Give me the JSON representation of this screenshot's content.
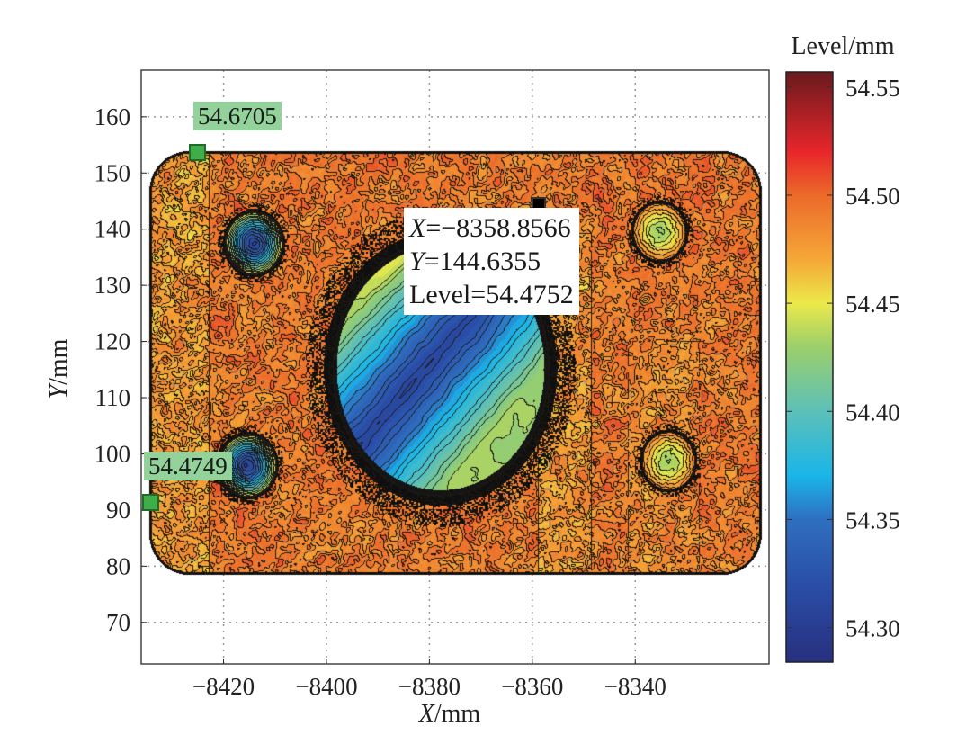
{
  "chart_data": {
    "type": "heatmap",
    "subtype": "filled-contour",
    "xlabel_var": "X",
    "xlabel_unit": "/mm",
    "ylabel_var": "Y",
    "ylabel_unit": "/mm",
    "xlim": [
      -8436,
      -8314
    ],
    "ylim": [
      62.6,
      168.3
    ],
    "xticks": [
      -8420,
      -8400,
      -8380,
      -8360,
      -8340
    ],
    "xtick_labels": [
      "−8420",
      "−8400",
      "−8380",
      "−8360",
      "−8340"
    ],
    "yticks": [
      160,
      150,
      140,
      130,
      120,
      110,
      100,
      90,
      80,
      70
    ],
    "ytick_labels": [
      "160",
      "150",
      "140",
      "130",
      "120",
      "110",
      "100",
      "90",
      "80",
      "70"
    ],
    "grid": true,
    "colorbar": {
      "title": "Level/mm",
      "range": [
        54.284,
        54.557
      ],
      "ticks": [
        54.55,
        54.5,
        54.45,
        54.4,
        54.35,
        54.3
      ],
      "tick_labels": [
        "54.55",
        "54.50",
        "54.45",
        "54.40",
        "54.35",
        "54.30"
      ],
      "colors": [
        {
          "v": 54.284,
          "c": "#27307e"
        },
        {
          "v": 54.32,
          "c": "#2a4ea8"
        },
        {
          "v": 54.35,
          "c": "#2f6fc0"
        },
        {
          "v": 54.37,
          "c": "#19b5e8"
        },
        {
          "v": 54.4,
          "c": "#5cc0b8"
        },
        {
          "v": 54.43,
          "c": "#9ccf6a"
        },
        {
          "v": 54.45,
          "c": "#ece94a"
        },
        {
          "v": 54.47,
          "c": "#f5a838"
        },
        {
          "v": 54.5,
          "c": "#ec6a2a"
        },
        {
          "v": 54.52,
          "c": "#e8262a"
        },
        {
          "v": 54.557,
          "c": "#6a1a1e"
        }
      ]
    },
    "plate": {
      "x": [
        -8434.5,
        -8315.5
      ],
      "y": [
        78.5,
        154
      ],
      "base_level": 54.49
    },
    "holes": [
      {
        "x": -8377.9,
        "y": 115.3,
        "rx": 21,
        "ry": 22.6,
        "level_min": 54.3,
        "level_max": 54.42
      },
      {
        "x": -8414.2,
        "y": 137.6,
        "rx": 5.6,
        "ry": 5.6,
        "level_min": 54.3,
        "level_max": 54.45
      },
      {
        "x": -8335.3,
        "y": 139.6,
        "rx": 5.2,
        "ry": 5.2,
        "level_min": 54.42,
        "level_max": 54.48
      },
      {
        "x": -8415.4,
        "y": 98.0,
        "rx": 5.6,
        "ry": 5.6,
        "level_min": 54.3,
        "level_max": 54.45
      },
      {
        "x": -8333.6,
        "y": 98.8,
        "rx": 5.2,
        "ry": 5.2,
        "level_min": 54.42,
        "level_max": 54.48
      }
    ],
    "annotations": [
      {
        "text": "54.6705",
        "x": -8425.1,
        "y": 153.8,
        "marker": "green"
      },
      {
        "text": "54.4749",
        "x": -8434.3,
        "y": 91.5,
        "marker": "green"
      },
      {
        "x_label": "X",
        "x_value": "=−8358.8566",
        "y_label": "Y",
        "y_value": "=144.6355",
        "level_text": "Level=54.4752",
        "x": -8358.8566,
        "y": 144.6355,
        "marker": "black"
      }
    ]
  }
}
